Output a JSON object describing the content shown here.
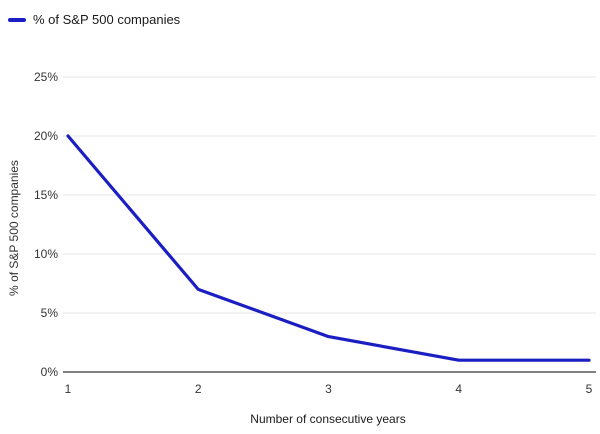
{
  "legend": {
    "label": "% of S&P 500 companies"
  },
  "colors": {
    "line": "#1b1ec2",
    "grid": "#e6e6e6",
    "axis": "#000000",
    "tick_text": "#333333",
    "title_text": "#1a1a1a"
  },
  "chart_data": {
    "type": "line",
    "title": "",
    "x": [
      1,
      2,
      3,
      4,
      5
    ],
    "series": [
      {
        "name": "% of S&P 500 companies",
        "values": [
          20,
          7,
          3,
          1,
          1
        ]
      }
    ],
    "xlabel": "Number of consecutive years",
    "ylabel": "% of S&P 500 companies",
    "xticks": [
      1,
      2,
      3,
      4,
      5
    ],
    "xtick_labels": [
      "1",
      "2",
      "3",
      "4",
      "5"
    ],
    "yticks": [
      0,
      5,
      10,
      15,
      20,
      25
    ],
    "ytick_labels": [
      "0%",
      "5%",
      "10%",
      "15%",
      "20%",
      "25%"
    ],
    "xlim": [
      1,
      5
    ],
    "ylim": [
      0,
      25
    ],
    "grid": true,
    "legend_position": "top-left"
  }
}
